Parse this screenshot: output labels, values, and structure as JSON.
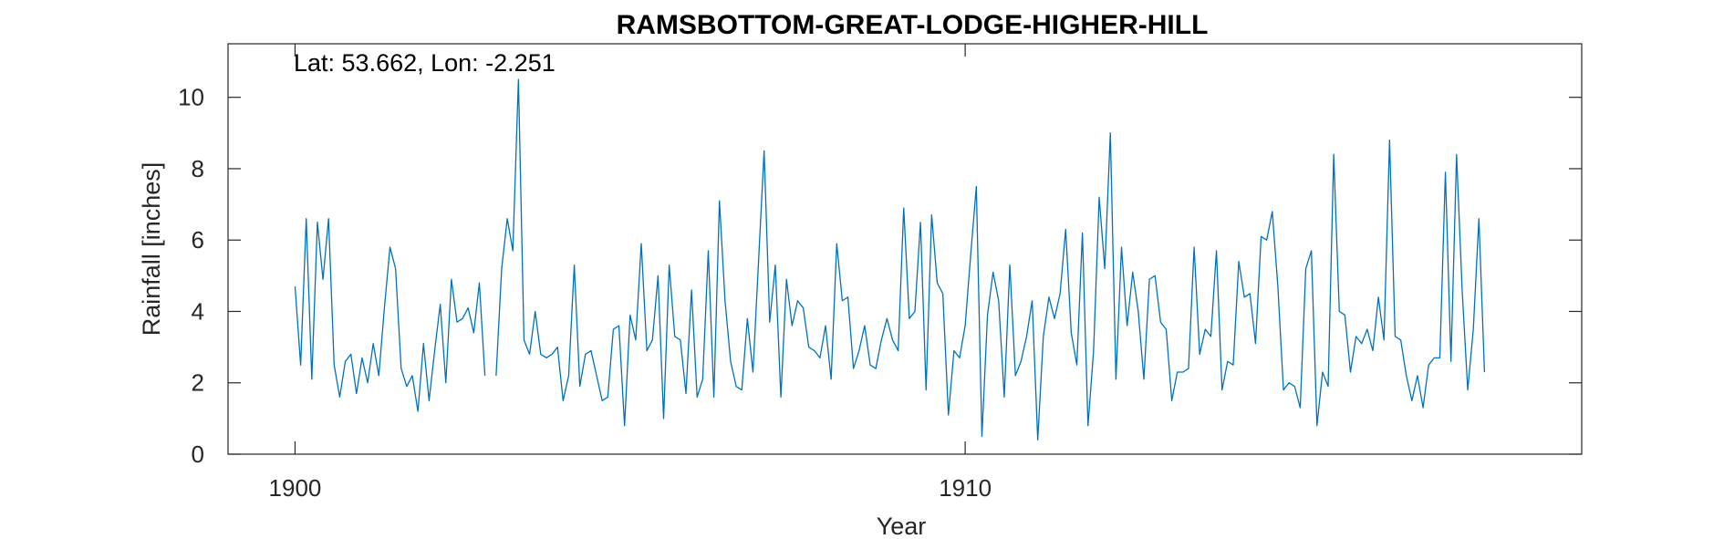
{
  "chart_data": {
    "type": "line",
    "title": "RAMSBOTTOM-GREAT-LODGE-HIGHER-HILL",
    "annotation": "Lat: 53.662, Lon: -2.251",
    "xlabel": "Year",
    "ylabel": "Rainfall [inches]",
    "xlim": [
      1899,
      1919.2
    ],
    "ylim": [
      0,
      11.5
    ],
    "x_ticks": [
      1900,
      1910
    ],
    "y_ticks": [
      0,
      2,
      4,
      6,
      8,
      10
    ],
    "grid": false,
    "line_color": "#0072BD",
    "series": [
      {
        "start_year": 1900,
        "step": 0.08333,
        "values": [
          4.7,
          2.5,
          6.6,
          2.1,
          6.5,
          4.9,
          6.6,
          2.5,
          1.6,
          2.6,
          2.8,
          1.7,
          2.7,
          2.0,
          3.1,
          2.2,
          4.1,
          5.8,
          5.2,
          2.4,
          1.9,
          2.2,
          1.2,
          3.1,
          1.5,
          2.9,
          4.2,
          2.0,
          4.9,
          3.7,
          3.8,
          4.1,
          3.4,
          4.8,
          2.2,
          null,
          2.2,
          5.2,
          6.6,
          5.7,
          10.5,
          3.2,
          2.8,
          4.0,
          2.8,
          2.7,
          2.8,
          3.0,
          1.5,
          2.2,
          5.3,
          1.9,
          2.8,
          2.9,
          2.2,
          1.5,
          1.6,
          3.5,
          3.6,
          0.8,
          3.9,
          3.2,
          5.9,
          2.9,
          3.2,
          5.0,
          1.0,
          5.3,
          3.3,
          3.2,
          1.7,
          4.6,
          1.6,
          2.1,
          5.7,
          1.6,
          7.1,
          4.3,
          2.6,
          1.9,
          1.8,
          3.8,
          2.3,
          5.4,
          8.5,
          3.7,
          5.3,
          1.6,
          4.9,
          3.6,
          4.3,
          4.1,
          3.0,
          2.9,
          2.7,
          3.6,
          2.1,
          5.9,
          4.3,
          4.4,
          2.4,
          2.9,
          3.6,
          2.5,
          2.4,
          3.2,
          3.8,
          3.2,
          2.9,
          6.9,
          3.8,
          4.0,
          6.5,
          1.8,
          6.7,
          4.8,
          4.5,
          1.1,
          2.9,
          2.7,
          3.6,
          5.6,
          7.5,
          0.5,
          3.9,
          5.1,
          4.3,
          1.6,
          5.3,
          2.2,
          2.6,
          3.3,
          4.3,
          0.4,
          3.3,
          4.4,
          3.8,
          4.5,
          6.3,
          3.4,
          2.5,
          6.2,
          0.8,
          2.9,
          7.2,
          5.2,
          9.0,
          2.1,
          5.8,
          3.6,
          5.1,
          4.0,
          2.1,
          4.9,
          5.0,
          3.7,
          3.5,
          1.5,
          2.3,
          2.3,
          2.4,
          5.8,
          2.8,
          3.5,
          3.3,
          5.7,
          1.8,
          2.6,
          2.5,
          5.4,
          4.4,
          4.5,
          3.1,
          6.1,
          6.0,
          6.8,
          4.7,
          1.8,
          2.0,
          1.9,
          1.3,
          5.2,
          5.7,
          0.8,
          2.3,
          1.9,
          8.4,
          4.0,
          3.9,
          2.3,
          3.3,
          3.1,
          3.5,
          2.9,
          4.4,
          3.2,
          8.8,
          3.3,
          3.2,
          2.2,
          1.5,
          2.2,
          1.3,
          2.5,
          2.7,
          2.7,
          7.9,
          2.6,
          8.4,
          4.6,
          1.8,
          3.5,
          6.6,
          2.3
        ]
      }
    ]
  }
}
